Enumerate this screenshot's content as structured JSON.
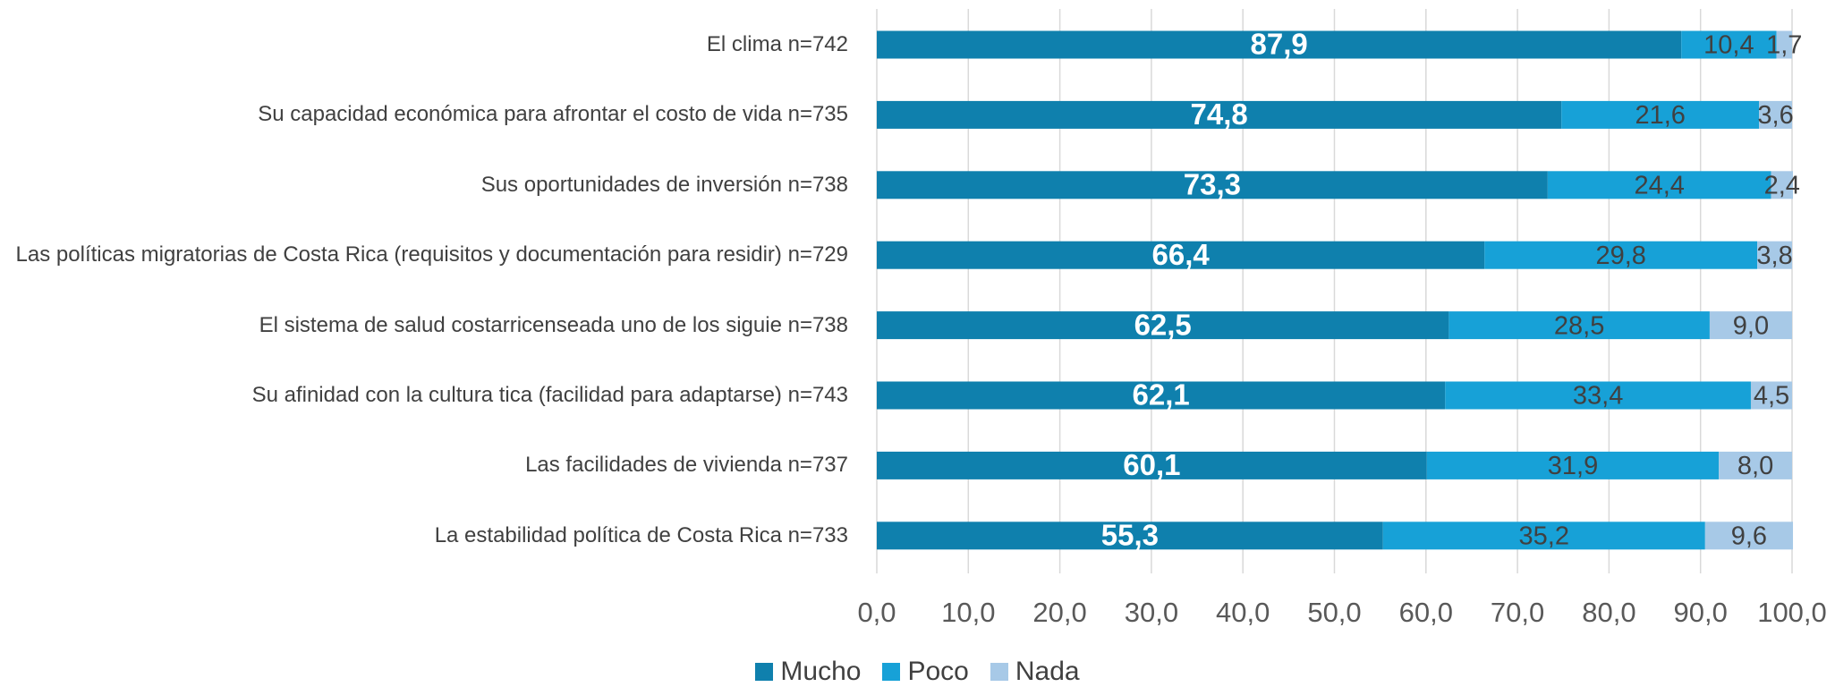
{
  "chart_data": {
    "type": "stacked-barh",
    "categories": [
      "El clima n=742",
      "Su capacidad económica para afrontar el costo de vida n=735",
      "Sus oportunidades de inversión n=738",
      "Las políticas migratorias de Costa Rica (requisitos y documentación para residir) n=729",
      "El sistema de salud costarricenseada uno de los siguie n=738",
      "Su afinidad con la cultura tica (facilidad para adaptarse) n=743",
      "Las facilidades de vivienda n=737",
      "La estabilidad política de Costa Rica n=733"
    ],
    "series": [
      {
        "name": "Mucho",
        "color": "#0f80ad",
        "label_color": "#ffffff",
        "values": [
          87.9,
          74.8,
          73.3,
          66.4,
          62.5,
          62.1,
          60.1,
          55.3
        ],
        "value_labels": [
          "87,9",
          "74,8",
          "73,3",
          "66,4",
          "62,5",
          "62,1",
          "60,1",
          "55,3"
        ]
      },
      {
        "name": "Poco",
        "color": "#17a1d7",
        "label_color": "#404040",
        "values": [
          10.4,
          21.6,
          24.4,
          29.8,
          28.5,
          33.4,
          31.9,
          35.2
        ],
        "value_labels": [
          "10,4",
          "21,6",
          "24,4",
          "29,8",
          "28,5",
          "33,4",
          "31,9",
          "35,2"
        ]
      },
      {
        "name": "Nada",
        "color": "#a7c9e7",
        "label_color": "#404040",
        "values": [
          1.7,
          3.6,
          2.4,
          3.8,
          9.0,
          4.5,
          8.0,
          9.6
        ],
        "value_labels": [
          "1,7",
          "3,6",
          "2,4",
          "3,8",
          "9,0",
          "4,5",
          "8,0",
          "9,6"
        ]
      }
    ],
    "xlim": [
      0,
      100
    ],
    "xticks": [
      {
        "value": 0,
        "label": "0,0"
      },
      {
        "value": 10,
        "label": "10,0"
      },
      {
        "value": 20,
        "label": "20,0"
      },
      {
        "value": 30,
        "label": "30,0"
      },
      {
        "value": 40,
        "label": "40,0"
      },
      {
        "value": 50,
        "label": "50,0"
      },
      {
        "value": 60,
        "label": "60,0"
      },
      {
        "value": 70,
        "label": "70,0"
      },
      {
        "value": 80,
        "label": "80,0"
      },
      {
        "value": 90,
        "label": "90,0"
      },
      {
        "value": 100,
        "label": "100,0"
      }
    ],
    "grid": true,
    "legend": "bottom"
  }
}
